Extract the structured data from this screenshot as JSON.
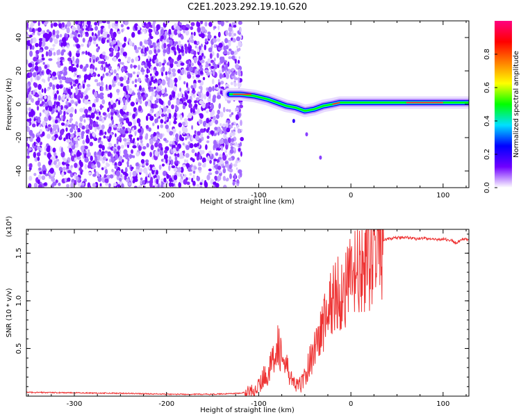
{
  "title": "C2E1.2023.292.19.10.G20",
  "colors": {
    "snr_line": "#ee3333",
    "scatter": "#7b00ff",
    "background": "#ffffff",
    "axis": "#000000"
  },
  "chart_data": [
    {
      "type": "heatmap",
      "title": "C2E1.2023.292.19.10.G20",
      "xlabel": "Height of straight line (km)",
      "ylabel": "Frequency (Hz)",
      "xlim": [
        -352,
        128
      ],
      "ylim": [
        -50,
        50
      ],
      "xticks": [
        -300,
        -200,
        -100,
        0,
        100
      ],
      "xtick_labels": [
        "-300",
        "-200",
        "-100",
        "0",
        "100"
      ],
      "yticks": [
        -40,
        -20,
        0,
        20,
        40
      ],
      "ytick_labels": [
        "-40",
        "-20",
        "0",
        "20",
        "40"
      ],
      "colorbar": {
        "label": "Normalized spectral amplitude",
        "range": [
          0,
          1
        ],
        "ticks": [
          0.0,
          0.2,
          0.4,
          0.6,
          0.8
        ],
        "tick_labels": [
          "0.0",
          "0.2",
          "0.4",
          "0.6",
          "0.8"
        ],
        "colormap": [
          "#ffffff",
          "#7000ff",
          "#0000ff",
          "#00e0ff",
          "#00ff00",
          "#ffff00",
          "#ff8000",
          "#ff0000",
          "#ff0080"
        ]
      },
      "noise_region_x": [
        -352,
        -118
      ],
      "signal_trace": {
        "x": [
          -132,
          -120,
          -105,
          -90,
          -80,
          -70,
          -60,
          -50,
          -40,
          -30,
          -20,
          -12,
          -5,
          0,
          20,
          40,
          60,
          80,
          100,
          128
        ],
        "y": [
          6,
          6,
          5,
          3,
          1,
          -1,
          -2,
          -4,
          -3,
          -1,
          0,
          1,
          1,
          1,
          1,
          1,
          1,
          1,
          1,
          1
        ]
      },
      "side_streak": {
        "x": [
          -62,
          -48,
          -33
        ],
        "y": [
          -10,
          -18,
          -32
        ]
      }
    },
    {
      "type": "line",
      "xlabel": "Height of straight line (km)",
      "ylabel": "SNR (10 * v/v)",
      "y_multiplier": "(x10⁴)",
      "xlim": [
        -352,
        128
      ],
      "ylim": [
        0,
        1.75
      ],
      "xticks": [
        -300,
        -200,
        -100,
        0,
        100
      ],
      "xtick_labels": [
        "-300",
        "-200",
        "-100",
        "0",
        "100"
      ],
      "yticks": [
        0.5,
        1.0,
        1.5
      ],
      "ytick_labels": [
        "0.5",
        "1.0",
        "1.5"
      ],
      "series": [
        {
          "x": [
            -352,
            -300,
            -250,
            -200,
            -150,
            -120,
            -110,
            -100,
            -95,
            -90,
            -85,
            -80,
            -75,
            -70,
            -65,
            -60,
            -55,
            -50,
            -45,
            -40,
            -35,
            -30,
            -25,
            -20,
            -15,
            -10,
            -5,
            0,
            5,
            10,
            15,
            20,
            25,
            30,
            35,
            40,
            50,
            60,
            70,
            80,
            90,
            100,
            110,
            115,
            120,
            128
          ],
          "y": [
            0.04,
            0.035,
            0.03,
            0.02,
            0.02,
            0.03,
            0.05,
            0.1,
            0.2,
            0.25,
            0.35,
            0.6,
            0.4,
            0.3,
            0.2,
            0.1,
            0.12,
            0.2,
            0.35,
            0.5,
            0.6,
            0.75,
            0.9,
            1.0,
            1.1,
            1.05,
            1.15,
            1.2,
            1.3,
            1.25,
            1.35,
            1.45,
            1.55,
            1.6,
            1.63,
            1.65,
            1.66,
            1.67,
            1.65,
            1.66,
            1.64,
            1.65,
            1.63,
            1.6,
            1.65,
            1.64
          ]
        }
      ]
    }
  ]
}
